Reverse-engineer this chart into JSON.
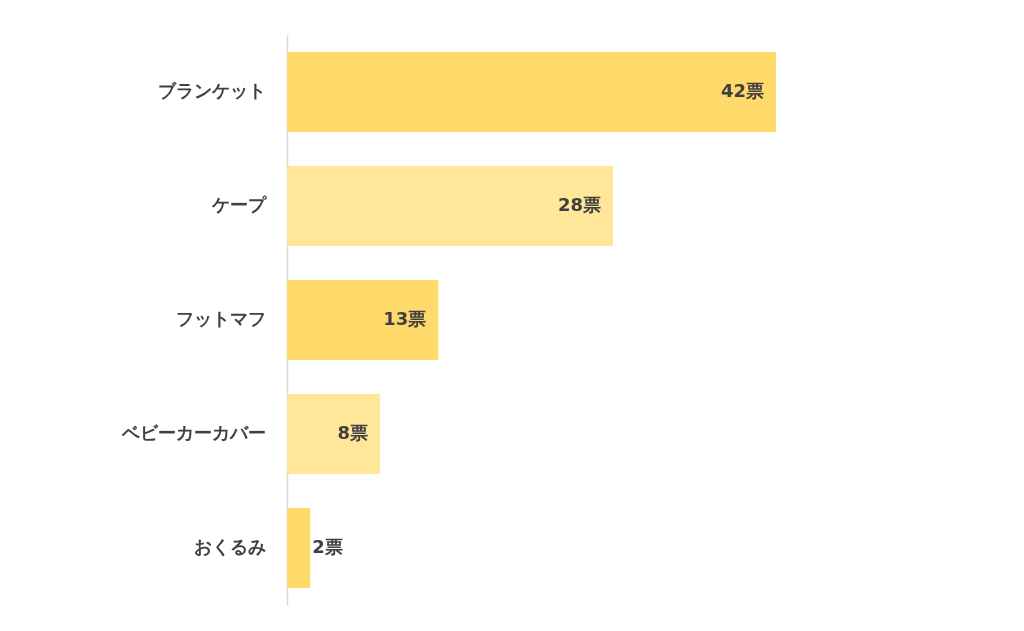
{
  "chart_data": {
    "type": "bar",
    "orientation": "horizontal",
    "categories": [
      "ブランケット",
      "ケープ",
      "フットマフ",
      "ベビーカーカバー",
      "おくるみ"
    ],
    "values": [
      42,
      28,
      13,
      8,
      2
    ],
    "value_labels": [
      "42票",
      "28票",
      "13票",
      "8票",
      "2票"
    ],
    "colors": [
      "#ffd96a",
      "#ffe699",
      "#ffd96a",
      "#ffe699",
      "#ffd96a"
    ],
    "grid": false
  }
}
